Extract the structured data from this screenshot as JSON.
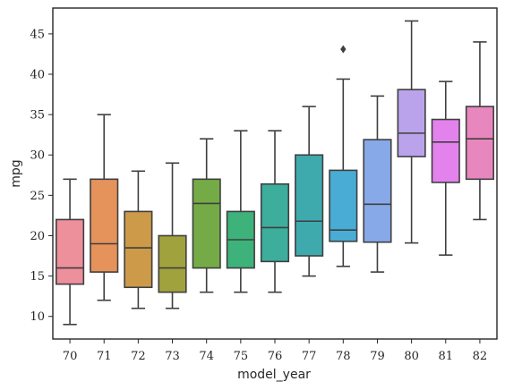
{
  "chart_data": {
    "type": "boxplot",
    "xlabel": "model_year",
    "ylabel": "mpg",
    "ylim": [
      7.2,
      48.2
    ],
    "yticks": [
      10,
      15,
      20,
      25,
      30,
      35,
      40,
      45
    ],
    "grid": false,
    "categories": [
      "70",
      "71",
      "72",
      "73",
      "74",
      "75",
      "76",
      "77",
      "78",
      "79",
      "80",
      "81",
      "82"
    ],
    "boxes": [
      {
        "category": "70",
        "whisker_low": 9,
        "q1": 14,
        "median": 16,
        "q3": 22,
        "whisker_high": 27,
        "fliers": [],
        "color": "#ee8f9c"
      },
      {
        "category": "71",
        "whisker_low": 12,
        "q1": 15.5,
        "median": 19,
        "q3": 27,
        "whisker_high": 35,
        "fliers": [],
        "color": "#e6925b"
      },
      {
        "category": "72",
        "whisker_low": 11,
        "q1": 13.6,
        "median": 18.5,
        "q3": 23,
        "whisker_high": 28,
        "fliers": [],
        "color": "#cc9a48"
      },
      {
        "category": "73",
        "whisker_low": 11,
        "q1": 13,
        "median": 16,
        "q3": 20,
        "whisker_high": 29,
        "fliers": [],
        "color": "#a0a23d"
      },
      {
        "category": "74",
        "whisker_low": 13,
        "q1": 16,
        "median": 24,
        "q3": 27,
        "whisker_high": 32,
        "fliers": [],
        "color": "#74ab46"
      },
      {
        "category": "75",
        "whisker_low": 13,
        "q1": 16,
        "median": 19.5,
        "q3": 23,
        "whisker_high": 33,
        "fliers": [],
        "color": "#3db27a"
      },
      {
        "category": "76",
        "whisker_low": 13,
        "q1": 16.8,
        "median": 21,
        "q3": 26.4,
        "whisker_high": 33,
        "fliers": [],
        "color": "#3cae9b"
      },
      {
        "category": "77",
        "whisker_low": 15,
        "q1": 17.5,
        "median": 21.8,
        "q3": 30,
        "whisker_high": 36,
        "fliers": [],
        "color": "#3eaaae"
      },
      {
        "category": "78",
        "whisker_low": 16.2,
        "q1": 19.3,
        "median": 20.7,
        "q3": 28.1,
        "whisker_high": 39.4,
        "fliers": [
          43.1
        ],
        "color": "#48acd4"
      },
      {
        "category": "79",
        "whisker_low": 15.5,
        "q1": 19.2,
        "median": 23.9,
        "q3": 31.9,
        "whisker_high": 37.3,
        "fliers": [],
        "color": "#88a9e8"
      },
      {
        "category": "80",
        "whisker_low": 19.1,
        "q1": 29.8,
        "median": 32.7,
        "q3": 38.1,
        "whisker_high": 46.6,
        "fliers": [],
        "color": "#bba3ec"
      },
      {
        "category": "81",
        "whisker_low": 17.6,
        "q1": 26.6,
        "median": 31.6,
        "q3": 34.4,
        "whisker_high": 39.1,
        "fliers": [],
        "color": "#e382ed"
      },
      {
        "category": "82",
        "whisker_low": 22,
        "q1": 27,
        "median": 32,
        "q3": 36,
        "whisker_high": 44,
        "fliers": [],
        "color": "#e886be"
      }
    ]
  }
}
